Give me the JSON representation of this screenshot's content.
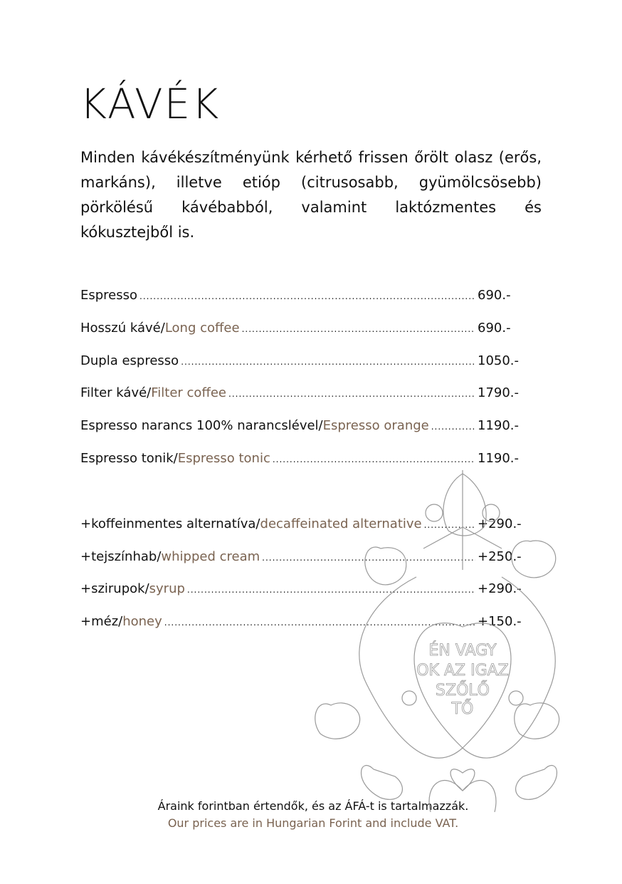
{
  "title": "KÁVÉK",
  "intro": "Minden kávékészítményünk kérhető frissen őrölt olasz (erős, markáns), illetve etióp (citrusosabb, gyümölcsösebb) pörkölésű kávébabból, valamint laktózmentes és kókusztejből is.",
  "items": [
    {
      "hu": "Espresso",
      "en": "",
      "price": "690.-"
    },
    {
      "hu": "Hosszú kávé/",
      "en": "Long coffee",
      "price": "690.-"
    },
    {
      "hu": "Dupla espresso",
      "en": "",
      "price": "1050.-"
    },
    {
      "hu": "Filter kávé/",
      "en": "Filter coffee",
      "price": "1790.-"
    },
    {
      "hu": "Espresso narancs 100% narancslével/",
      "en": "Espresso orange",
      "price": "1190.-"
    },
    {
      "hu": "Espresso tonik/",
      "en": "Espresso tonic",
      "price": "1190.-"
    }
  ],
  "extras": [
    {
      "hu": "+koffeinmentes alternatíva/",
      "en": "decaffeinated alternative",
      "price": "+290.-"
    },
    {
      "hu": "+tejszínhab/",
      "en": "whipped cream",
      "price": "+250.-"
    },
    {
      "hu": "+szirupok/",
      "en": "syrup",
      "price": "+290.-"
    },
    {
      "hu": "+méz/",
      "en": "honey",
      "price": "+150.-"
    }
  ],
  "footer": {
    "hu": "Áraink forintban értendők, és az ÁFÁ-t is tartalmazzák.",
    "en": "Our prices are in Hungarian Forint and include VAT."
  },
  "decoration": {
    "lettering": "ÉN VAGYOK AZ IGAZ SZŐLŐTŐ",
    "icon": "folk-tree-heart-illustration"
  },
  "colors": {
    "text": "#111111",
    "accent": "#7a6351",
    "illustration": "#9a9a9a"
  }
}
